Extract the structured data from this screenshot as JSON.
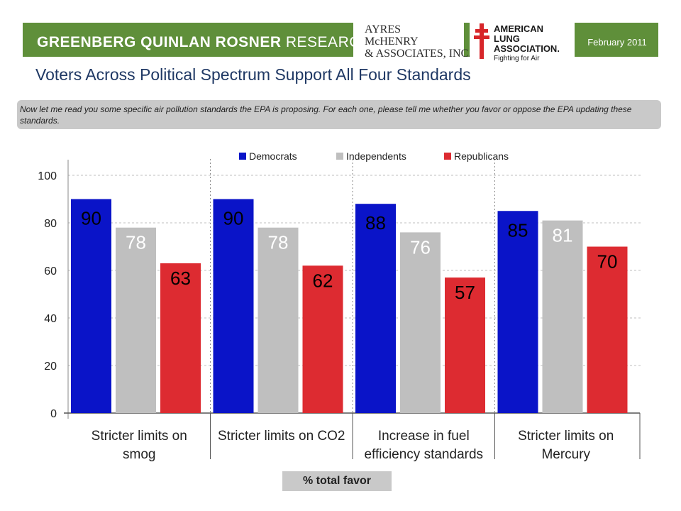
{
  "header": {
    "org_bold": "GREENBERG QUINLAN ROSNER",
    "org_light": "RESEARCH",
    "partner1_line1": "AYRES",
    "partner1_line2": "McHENRY",
    "partner1_line3": "& ASSOCIATES, INC.",
    "partner2_line1": "AMERICAN",
    "partner2_line2": "LUNG",
    "partner2_line3": "ASSOCIATION.",
    "partner2_tagline": "Fighting for Air",
    "date": "February 2011",
    "brand_color": "#5f8f3a"
  },
  "title": "Voters Across Political Spectrum Support All Four Standards",
  "question": "Now let me read you some specific air pollution standards the EPA is proposing. For each one, please tell me whether you favor or oppose the EPA updating these standards.",
  "favor_label": "% total favor",
  "chart_data": {
    "type": "bar",
    "categories": [
      [
        "Stricter limits on",
        "smog"
      ],
      [
        "Stricter limits on CO2"
      ],
      [
        "Increase in fuel",
        "efficiency standards"
      ],
      [
        "Stricter limits on",
        "Mercury"
      ]
    ],
    "series": [
      {
        "name": "Democrats",
        "color": "#0a14c8",
        "values": [
          90,
          90,
          88,
          85
        ]
      },
      {
        "name": "Independents",
        "color": "#bfbfbf",
        "values": [
          78,
          78,
          76,
          81
        ]
      },
      {
        "name": "Republicans",
        "color": "#dd2b31",
        "values": [
          63,
          62,
          57,
          70
        ]
      }
    ],
    "yticks": [
      0,
      20,
      40,
      60,
      80,
      100
    ],
    "ylim": [
      0,
      100
    ],
    "grid": true,
    "legend": "top"
  }
}
